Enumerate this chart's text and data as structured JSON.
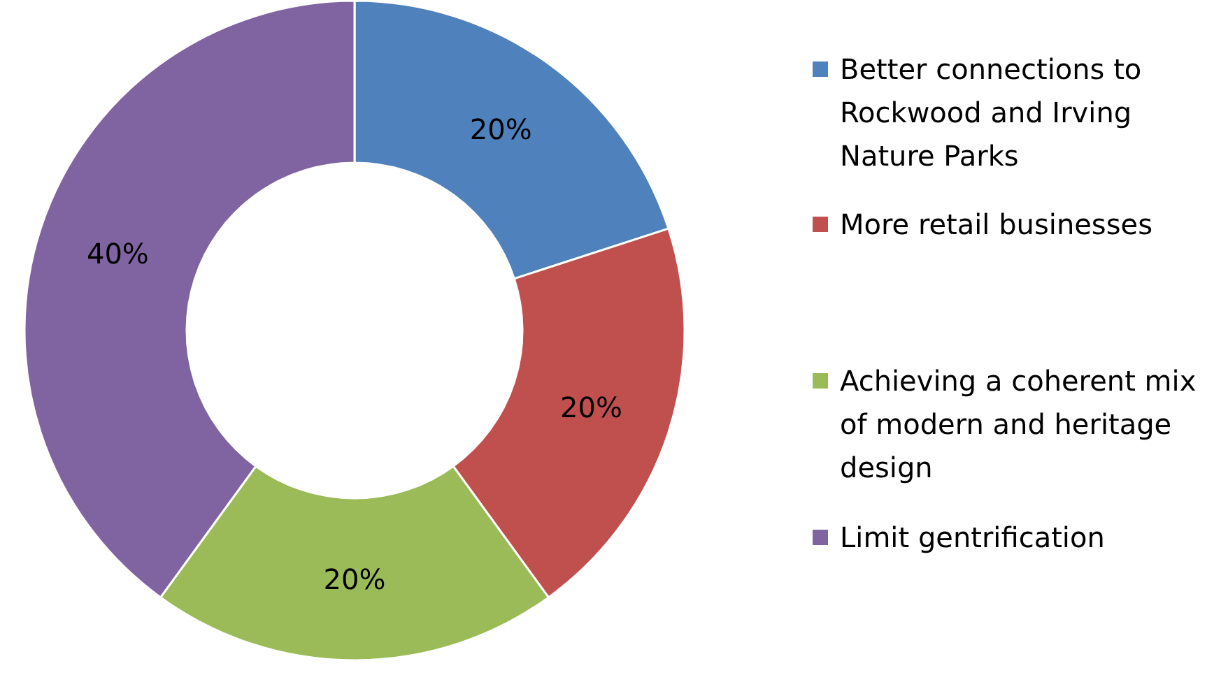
{
  "chart_data": {
    "type": "donut",
    "categories": [
      "Better connections to Rockwood and Irving Nature Parks",
      "More retail businesses",
      "Achieving a coherent mix of modern and heritage design",
      "Limit gentrification"
    ],
    "values": [
      20,
      20,
      20,
      40
    ],
    "colors": [
      "#4f81bd",
      "#c0504d",
      "#9bbb59",
      "#8064a2"
    ],
    "value_labels": [
      "20%",
      "20%",
      "20%",
      "40%"
    ],
    "legend": "right"
  }
}
